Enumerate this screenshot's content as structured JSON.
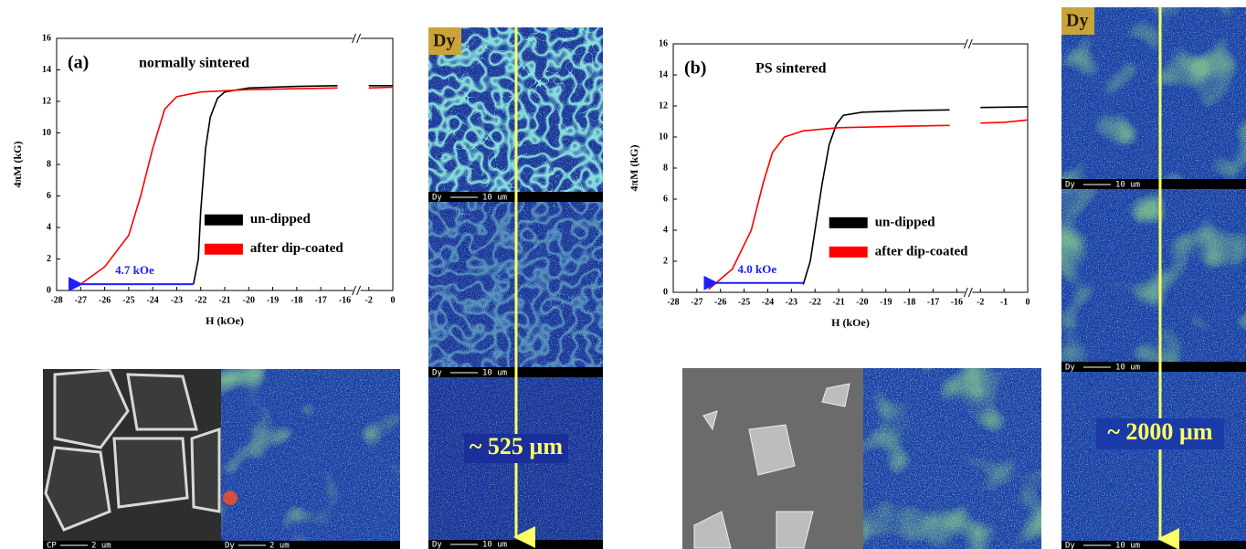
{
  "chart_data": [
    {
      "type": "line",
      "panel_label": "(a)",
      "title": "normally sintered",
      "x_label": "H (kOe)",
      "y_label": "4πM (kG)",
      "xlim": [
        -28,
        0
      ],
      "xticks": [
        -28,
        -27,
        -26,
        -25,
        -24,
        -23,
        -22,
        -21,
        -20,
        -19,
        -18,
        -17,
        -16,
        -2,
        0
      ],
      "ylim": [
        0,
        16
      ],
      "yticks": [
        0,
        2,
        4,
        6,
        8,
        10,
        12,
        14,
        16
      ],
      "legend": "center-right",
      "series": [
        {
          "name": "un-dipped",
          "color": "#000000",
          "x": [
            -22.3,
            -22.1,
            -22.0,
            -21.8,
            -21.6,
            -21.3,
            -21.0,
            -20.0,
            -18.0,
            -16.3,
            null,
            -2.0,
            0.0
          ],
          "values": [
            0.4,
            2,
            5,
            9,
            11,
            12.2,
            12.6,
            12.85,
            12.95,
            13.0,
            null,
            13.0,
            13.0
          ]
        },
        {
          "name": "after dip-coated",
          "color": "#ff0000",
          "x": [
            -27.0,
            -26.0,
            -25.0,
            -24.5,
            -24.0,
            -23.5,
            -23.0,
            -22.0,
            -20.0,
            -16.3,
            null,
            -2.0,
            0.0
          ],
          "values": [
            0.4,
            1.5,
            3.5,
            6,
            9,
            11.5,
            12.3,
            12.6,
            12.75,
            12.85,
            null,
            12.85,
            12.9
          ]
        }
      ],
      "annotation": {
        "text": "4.7 kOe",
        "x_from": -22.3,
        "x_to": -27.2,
        "y": 0.4,
        "color": "#1f1fff"
      }
    },
    {
      "type": "line",
      "panel_label": "(b)",
      "title": "PS sintered",
      "x_label": "H (kOe)",
      "y_label": "4πM (kG)",
      "xlim": [
        -28,
        0
      ],
      "xticks": [
        -28,
        -27,
        -26,
        -25,
        -24,
        -23,
        -22,
        -21,
        -20,
        -19,
        -18,
        -17,
        -16,
        -2,
        -1,
        0
      ],
      "ylim": [
        0,
        16
      ],
      "yticks": [
        0,
        2,
        4,
        6,
        8,
        10,
        12,
        14,
        16
      ],
      "legend": "center-right",
      "series": [
        {
          "name": "un-dipped",
          "color": "#000000",
          "x": [
            -22.5,
            -22.2,
            -22.0,
            -21.7,
            -21.4,
            -21.1,
            -20.8,
            -20.0,
            -18.0,
            -16.3,
            null,
            -2.0,
            0.0
          ],
          "values": [
            0.5,
            2,
            4,
            7,
            9.5,
            10.8,
            11.4,
            11.6,
            11.7,
            11.75,
            null,
            11.9,
            11.95
          ]
        },
        {
          "name": "after dip-coated",
          "color": "#ff0000",
          "x": [
            -26.5,
            -25.5,
            -24.7,
            -24.2,
            -23.8,
            -23.3,
            -22.5,
            -21.0,
            -18.0,
            -16.3,
            null,
            -2.0,
            -1.0,
            0.0
          ],
          "values": [
            0.2,
            1.5,
            4,
            7,
            9,
            10,
            10.4,
            10.6,
            10.7,
            10.75,
            null,
            10.9,
            10.95,
            11.1
          ]
        }
      ],
      "annotation": {
        "text": "4.0 kOe",
        "x_from": -22.5,
        "x_to": -26.4,
        "y": 0.6,
        "color": "#1f1fff"
      }
    }
  ],
  "micrographs": {
    "a": {
      "tag": "Dy",
      "depth": "~ 525 µm",
      "column_scale_bars": [
        {
          "label": "Dy",
          "length": "10 um"
        },
        {
          "label": "Dy",
          "length": "10 um"
        },
        {
          "label": "Dy",
          "length": "10 um"
        }
      ],
      "grain_scale_bars": [
        {
          "label": "CP",
          "length": "2 um"
        },
        {
          "label": "Dy",
          "length": "2 um"
        }
      ]
    },
    "b": {
      "tag": "Dy",
      "depth": "~ 2000 µm",
      "column_scale_bars": [
        {
          "label": "Dy",
          "length": "10 um"
        },
        {
          "label": "Dy",
          "length": "10 um"
        },
        {
          "label": "Dy",
          "length": "10 um"
        }
      ]
    }
  }
}
